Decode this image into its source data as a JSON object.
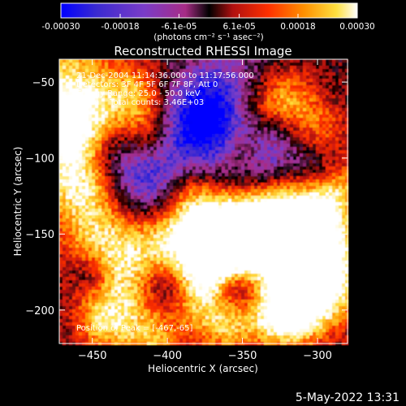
{
  "chart_data": {
    "type": "heatmap",
    "title": "Reconstructed RHESSI Image",
    "xlabel": "Heliocentric X (arcsec)",
    "ylabel": "Heliocentric Y (arcsec)",
    "xlim": [
      -472,
      -280
    ],
    "ylim": [
      -222,
      -35
    ],
    "x_ticks": [
      -450,
      -400,
      -350,
      -300
    ],
    "y_ticks": [
      -50,
      -100,
      -150,
      -200
    ],
    "x_tick_labels": [
      "−450",
      "−400",
      "−350",
      "−300"
    ],
    "y_tick_labels": [
      "−50",
      "−100",
      "−150",
      "−200"
    ],
    "colorbar": {
      "range": [
        -0.0003,
        0.0003
      ],
      "tick_labels": [
        "-0.00030",
        "-0.00018",
        "-6.1e-05",
        "6.1e-05",
        "0.00018",
        "0.00030"
      ],
      "unit_label": "(photons cm⁻² s⁻¹ asec⁻²)",
      "colormap": [
        "#0000ff",
        "#3a2ad0",
        "#7a3cc8",
        "#a72c86",
        "#000000",
        "#b01010",
        "#ff3000",
        "#ff9000",
        "#ffe040",
        "#ffffff"
      ]
    },
    "annotations": [
      "21-Dec-2004 11:14:36.000 to 11:17:56.000",
      "Detectors: 3F 4F 5F 6F 7F 8F, Att 0",
      "Energy Range: 25.0 - 50.0 keV",
      "Clean    Total counts: 3.46E+03"
    ],
    "peak_label": "Position of Peak = [-467,-65]",
    "peak_position": [
      -467,
      -65
    ],
    "total_counts": 3460
  },
  "footer": {
    "date": "5-May-2022 13:31"
  }
}
